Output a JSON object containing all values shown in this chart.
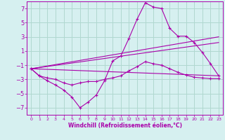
{
  "xlabel": "Windchill (Refroidissement éolien,°C)",
  "background_color": "#d6f0f0",
  "grid_color": "#b0d8d0",
  "line_color": "#aa00aa",
  "ylim": [
    -8,
    8
  ],
  "xlim": [
    -0.5,
    23.5
  ],
  "yticks": [
    -7,
    -5,
    -3,
    -1,
    1,
    3,
    5,
    7
  ],
  "xticks": [
    0,
    1,
    2,
    3,
    4,
    5,
    6,
    7,
    8,
    9,
    10,
    11,
    12,
    13,
    14,
    15,
    16,
    17,
    18,
    19,
    20,
    21,
    22,
    23
  ],
  "curve1_x": [
    0,
    1,
    2,
    3,
    4,
    5,
    6,
    7,
    8,
    9,
    10,
    11,
    12,
    13,
    14,
    15,
    16,
    17,
    18,
    19,
    20,
    21,
    22,
    23
  ],
  "curve1_y": [
    -1.5,
    -2.5,
    -3.2,
    -3.8,
    -4.5,
    -5.5,
    -7.0,
    -6.2,
    -5.2,
    -3.2,
    -0.4,
    0.3,
    2.8,
    5.5,
    7.8,
    7.2,
    7.0,
    4.2,
    3.1,
    3.1,
    2.2,
    0.8,
    -0.8,
    -2.5
  ],
  "curve2_x": [
    0,
    1,
    2,
    3,
    4,
    5,
    6,
    7,
    8,
    9,
    10,
    11,
    12,
    13,
    14,
    15,
    16,
    17,
    18,
    19,
    20,
    21,
    22,
    23
  ],
  "curve2_y": [
    -1.5,
    -2.5,
    -2.8,
    -3.0,
    -3.5,
    -3.8,
    -3.5,
    -3.3,
    -3.3,
    -3.0,
    -2.8,
    -2.5,
    -1.8,
    -1.2,
    -0.5,
    -0.8,
    -1.0,
    -1.5,
    -2.0,
    -2.4,
    -2.7,
    -2.8,
    -2.9,
    -2.9
  ],
  "line1_x": [
    0,
    23
  ],
  "line1_y": [
    -1.5,
    3.0
  ],
  "line2_x": [
    0,
    23
  ],
  "line2_y": [
    -1.5,
    2.2
  ],
  "line3_x": [
    0,
    23
  ],
  "line3_y": [
    -1.5,
    -2.5
  ]
}
